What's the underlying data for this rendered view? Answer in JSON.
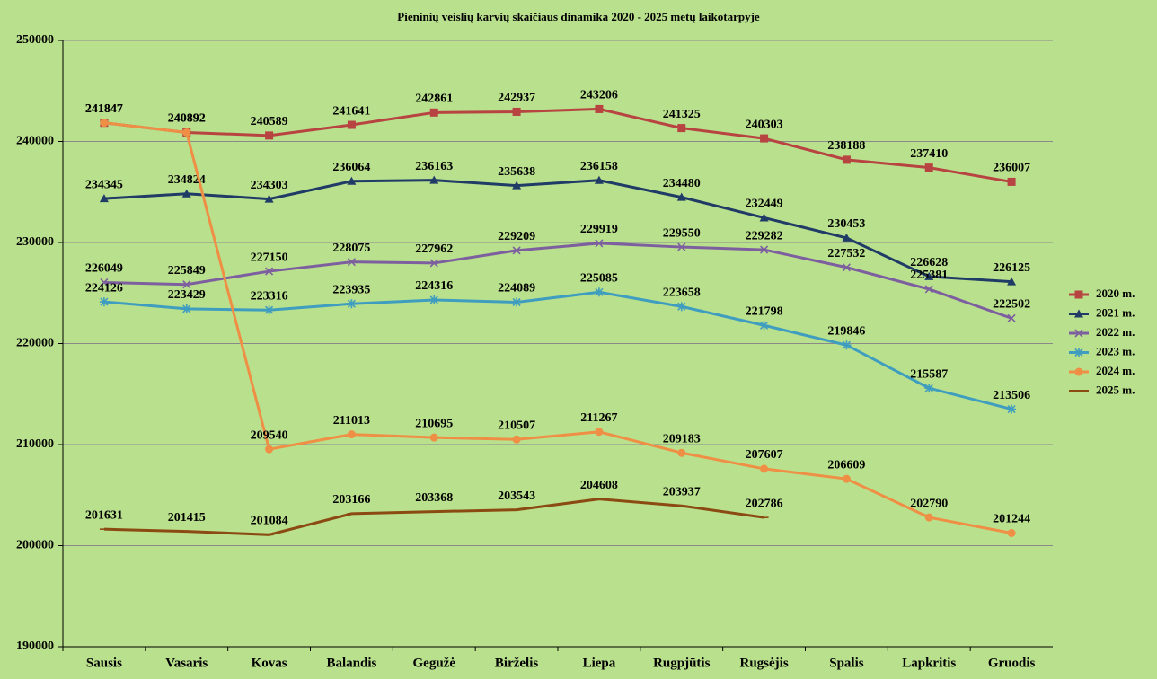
{
  "chart_data": {
    "type": "line",
    "title": "Pieninių  veislių karvių  skaičiaus dinamika  2020 - 2025 metų laikotarpyje",
    "categories": [
      "Sausis",
      "Vasaris",
      "Kovas",
      "Balandis",
      "Gegužė",
      "Birželis",
      "Liepa",
      "Rugpjūtis",
      "Rugsėjis",
      "Spalis",
      "Lapkritis",
      "Gruodis"
    ],
    "ylim": [
      190000,
      250000
    ],
    "yticks": [
      190000,
      200000,
      210000,
      220000,
      230000,
      240000,
      250000
    ],
    "grid": true,
    "legend": "right",
    "series": [
      {
        "name": "2020 m.",
        "color": "#b84442",
        "marker": "square",
        "values": [
          241847,
          240892,
          240589,
          241641,
          242861,
          242937,
          243206,
          241325,
          240303,
          238188,
          237410,
          236007
        ]
      },
      {
        "name": "2021 m.",
        "color": "#1f3b66",
        "marker": "triangle",
        "values": [
          234345,
          234824,
          234303,
          236064,
          236163,
          235638,
          236158,
          234480,
          232449,
          230453,
          226628,
          226125
        ]
      },
      {
        "name": "2022 m.",
        "color": "#7d5fa0",
        "marker": "x",
        "values": [
          226049,
          225849,
          227150,
          228075,
          227962,
          229209,
          229919,
          229550,
          229282,
          227532,
          225381,
          222502
        ]
      },
      {
        "name": "2023 m.",
        "color": "#3f9dbf",
        "marker": "star",
        "values": [
          224126,
          223429,
          223316,
          223935,
          224316,
          224089,
          225085,
          223658,
          221798,
          219846,
          215587,
          213506
        ]
      },
      {
        "name": "2024 m.",
        "color": "#ef8f45",
        "marker": "circle",
        "values": [
          241847,
          240892,
          209540,
          211013,
          210695,
          210507,
          211267,
          209183,
          207607,
          206609,
          202790,
          201244
        ]
      },
      {
        "name": "2025 m.",
        "color": "#8b4a12",
        "marker": "plus",
        "values": [
          201631,
          201415,
          201084,
          203166,
          203368,
          203543,
          204608,
          203937,
          202786,
          null,
          null,
          null
        ]
      }
    ]
  }
}
